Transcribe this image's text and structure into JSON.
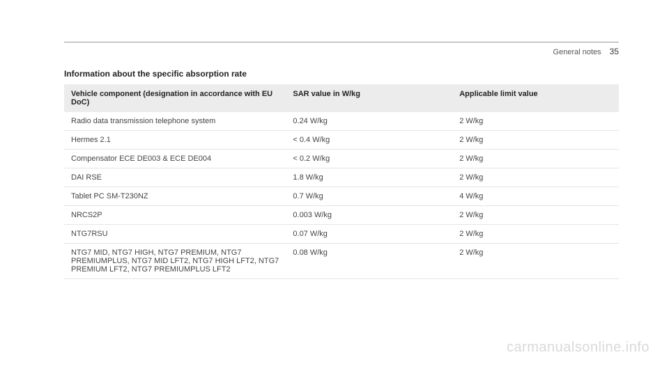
{
  "header": {
    "section": "General notes",
    "page": "35"
  },
  "title": "Information about the specific absorption rate",
  "table": {
    "columns": [
      "Vehicle component (designation in accordance with EU DoC)",
      "SAR value in W/kg",
      "Applicable limit value"
    ],
    "rows": [
      [
        "Radio data transmission telephone system",
        "0.24 W/kg",
        "2 W/kg"
      ],
      [
        "Hermes 2.1",
        "< 0.4 W/kg",
        "2 W/kg"
      ],
      [
        "Compensator ECE DE003 & ECE DE004",
        "< 0.2 W/kg",
        "2 W/kg"
      ],
      [
        "DAI RSE",
        "1.8 W/kg",
        "2 W/kg"
      ],
      [
        "Tablet PC SM-T230NZ",
        "0.7 W/kg",
        "4 W/kg"
      ],
      [
        "NRCS2P",
        "0.003 W/kg",
        "2 W/kg"
      ],
      [
        "NTG7RSU",
        "0.07 W/kg",
        "2 W/kg"
      ],
      [
        "NTG7 MID, NTG7 HIGH, NTG7 PREMIUM, NTG7 PREMIUMPLUS, NTG7 MID LFT2, NTG7 HIGH LFT2, NTG7 PREMIUM LFT2, NTG7 PREMIUMPLUS LFT2",
        "0.08 W/kg",
        "2 W/kg"
      ]
    ],
    "header_bg": "#ececec",
    "row_border": "#e5e5e5",
    "font_size": 11,
    "col_widths": [
      "40%",
      "30%",
      "30%"
    ]
  },
  "watermark": "carmanualsonline.info"
}
